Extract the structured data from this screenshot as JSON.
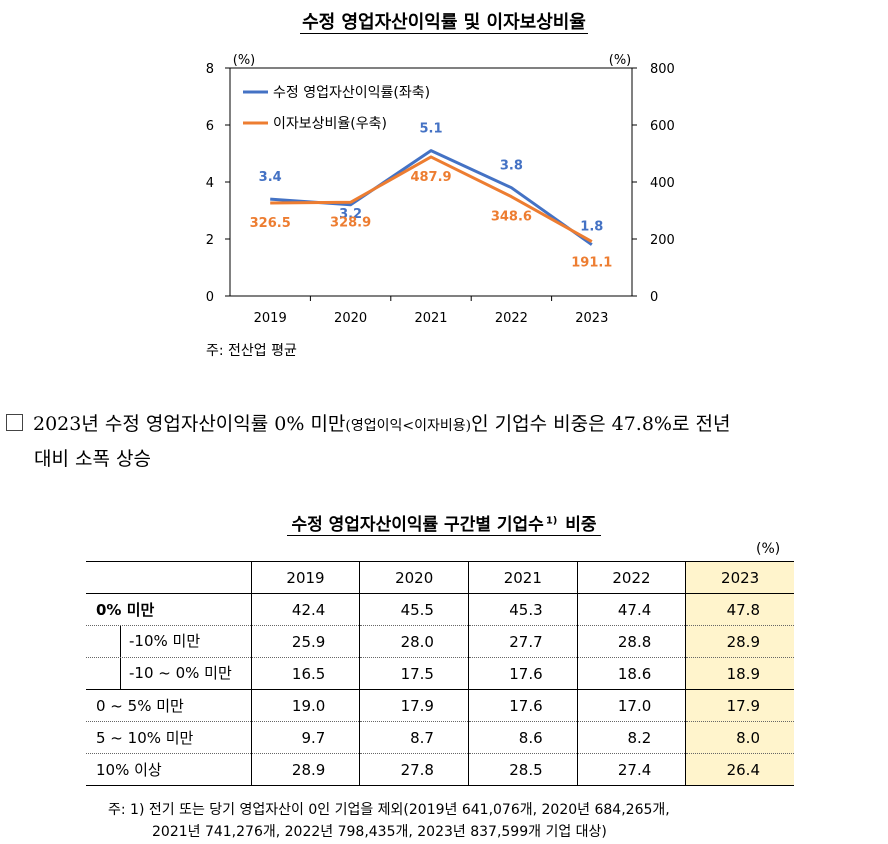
{
  "chart_data": {
    "type": "line",
    "title": "수정 영업자산이익률 및 이자보상비율",
    "categories": [
      "2019",
      "2020",
      "2021",
      "2022",
      "2023"
    ],
    "y_left": {
      "unit": "(%)",
      "min": 0,
      "max": 8,
      "ticks": [
        "0",
        "2",
        "4",
        "6",
        "8"
      ]
    },
    "y_right": {
      "unit": "(%)",
      "min": 0,
      "max": 800,
      "ticks": [
        "0",
        "200",
        "400",
        "600",
        "800"
      ]
    },
    "series": [
      {
        "name": "수정 영업자산이익률(좌축)",
        "axis": "left",
        "color": "#4472c4",
        "values": [
          3.4,
          3.2,
          5.1,
          3.8,
          1.8
        ],
        "labels": [
          "3.4",
          "3.2",
          "5.1",
          "3.8",
          "1.8"
        ]
      },
      {
        "name": "이자보상비율(우축)",
        "axis": "right",
        "color": "#ed7d31",
        "values": [
          326.5,
          328.9,
          487.9,
          348.6,
          191.1
        ],
        "labels": [
          "326.5",
          "328.9",
          "487.9",
          "348.6",
          "191.1"
        ]
      }
    ],
    "grid": false,
    "legend": "top-left",
    "note": "주: 전산업 평균"
  },
  "paragraph": {
    "line1_a": "2023년 수정 영업자산이익률 0% 미만",
    "line1_small": "(영업이익<이자비용)",
    "line1_b": "인 기업수 비중은 47.8%로 전년",
    "line2": "대비 소폭 상승"
  },
  "table": {
    "title": "수정 영업자산이익률 구간별 기업수",
    "title_sup": "1)",
    "title_tail": " 비중",
    "unit": "(%)",
    "columns": [
      "2019",
      "2020",
      "2021",
      "2022",
      "2023"
    ],
    "rows": [
      {
        "label": "0% 미만",
        "values": [
          "42.4",
          "45.5",
          "45.3",
          "47.4",
          "47.8"
        ]
      },
      {
        "label": "-10% 미만",
        "values": [
          "25.9",
          "28.0",
          "27.7",
          "28.8",
          "28.9"
        ]
      },
      {
        "label": "-10 ~ 0% 미만",
        "values": [
          "16.5",
          "17.5",
          "17.6",
          "18.6",
          "18.9"
        ]
      },
      {
        "label": "0 ~ 5% 미만",
        "values": [
          "19.0",
          "17.9",
          "17.6",
          "17.0",
          "17.9"
        ]
      },
      {
        "label": "5 ~ 10% 미만",
        "values": [
          "9.7",
          "8.7",
          "8.6",
          "8.2",
          "8.0"
        ]
      },
      {
        "label": "10% 이상",
        "values": [
          "28.9",
          "27.8",
          "28.5",
          "27.4",
          "26.4"
        ]
      }
    ],
    "highlight_color": "#fff4cc",
    "note_line1": "주: 1) 전기 또는 당기 영업자산이 0인 기업을 제외(2019년 641,076개, 2020년 684,265개,",
    "note_line2": "2021년 741,276개, 2022년 798,435개, 2023년 837,599개 기업 대상)"
  }
}
